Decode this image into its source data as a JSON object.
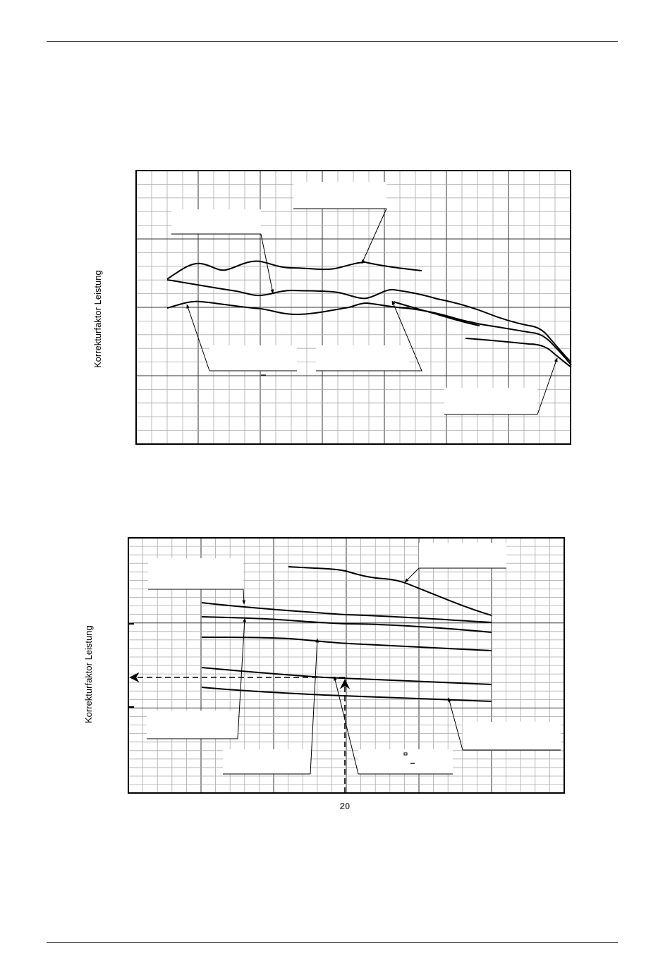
{
  "chart_data": [
    {
      "type": "line",
      "title": "",
      "xlabel": "",
      "ylabel": "Korrekturfaktor Leistung",
      "grid": true,
      "series": [
        {
          "values": []
        },
        {
          "values": []
        },
        {
          "values": []
        },
        {
          "values": []
        },
        {
          "values": []
        }
      ],
      "annotations": []
    },
    {
      "type": "line",
      "title": "",
      "xlabel": "",
      "ylabel": "Korrekturfaktor Leistung",
      "grid": true,
      "x_tick_labels": [
        "20"
      ],
      "series": [
        {
          "values": []
        },
        {
          "values": []
        },
        {
          "values": []
        },
        {
          "values": []
        },
        {
          "values": []
        },
        {
          "values": []
        },
        {
          "values": []
        }
      ],
      "annotations": []
    }
  ],
  "colors": {
    "line": "#000000",
    "grid_minor": "#999999",
    "grid_major": "#333333",
    "tick_label": "#555555"
  }
}
